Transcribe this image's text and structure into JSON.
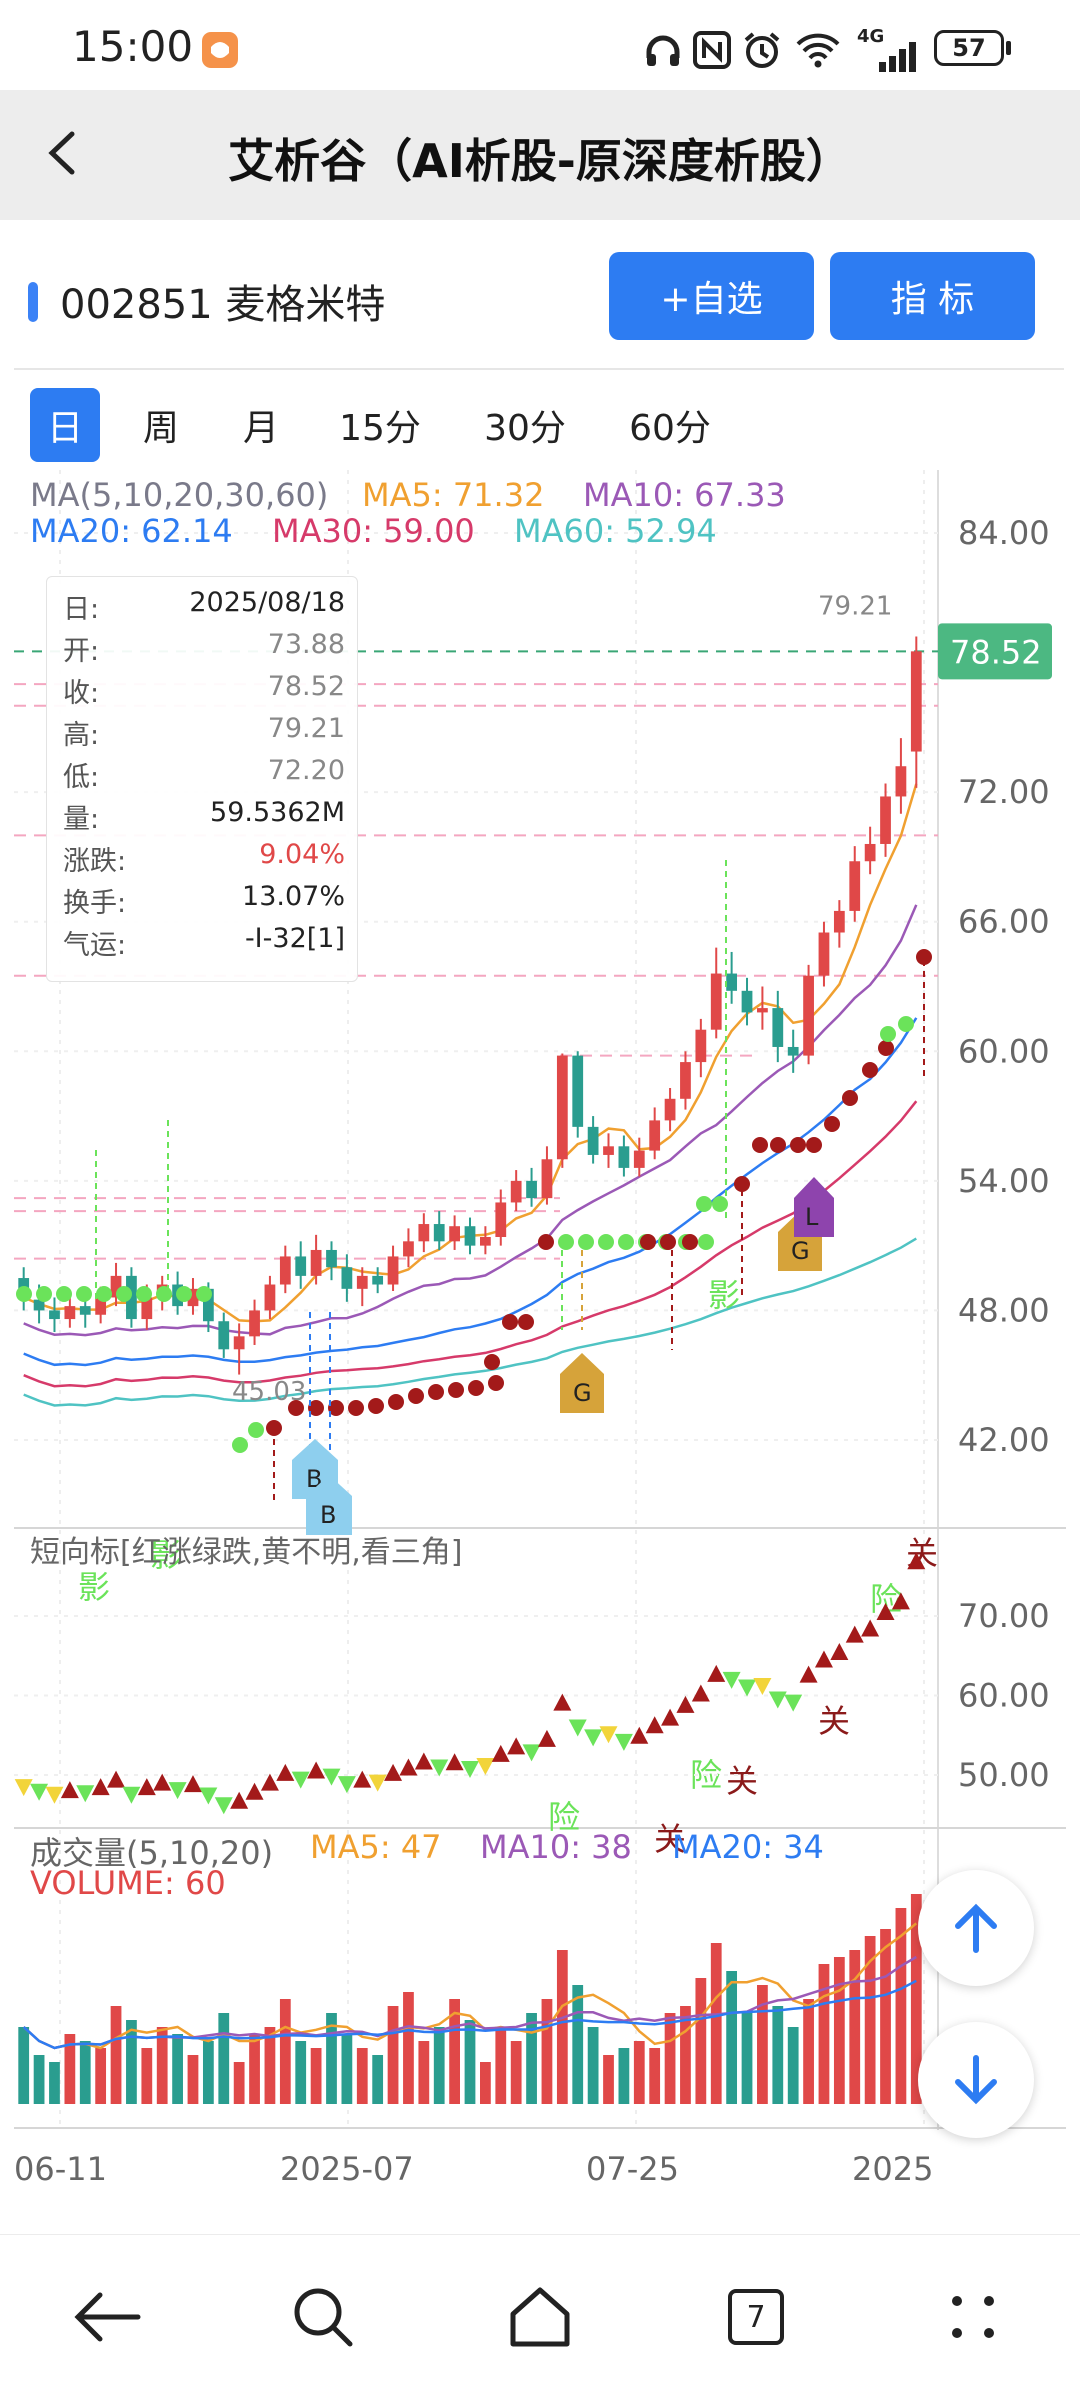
{
  "status_bar": {
    "time": "15:00",
    "battery": "57",
    "network": "4G",
    "icons": [
      "app-notification-icon",
      "headphones-icon",
      "nfc-icon",
      "alarm-icon",
      "wifi-icon",
      "signal-icon",
      "battery-icon"
    ]
  },
  "nav": {
    "title": "艾析谷（AI析股-原深度析股）",
    "back_icon": "chevron-left-icon"
  },
  "stock": {
    "code_name": "002851 麦格米特",
    "accent": "#3b82f6"
  },
  "buttons": {
    "watchlist": "+自选",
    "indicator": "指  标"
  },
  "periods": [
    {
      "label": "日",
      "active": true
    },
    {
      "label": "周",
      "active": false
    },
    {
      "label": "月",
      "active": false
    },
    {
      "label": "15分",
      "active": false
    },
    {
      "label": "30分",
      "active": false
    },
    {
      "label": "60分",
      "active": false
    }
  ],
  "ma_legend": {
    "title": "MA(5,10,20,30,60)",
    "ma5": "MA5: 71.32",
    "ma10": "MA10: 67.33",
    "ma20": "MA20: 62.14",
    "ma30": "MA30: 59.00",
    "ma60": "MA60: 52.94"
  },
  "info": {
    "rows": [
      {
        "k": "日:",
        "v": "2025/08/18"
      },
      {
        "k": "开:",
        "v": "73.88"
      },
      {
        "k": "收:",
        "v": "78.52"
      },
      {
        "k": "高:",
        "v": "79.21"
      },
      {
        "k": "低:",
        "v": "72.20"
      },
      {
        "k": "量:",
        "v": "59.5362M"
      },
      {
        "k": "涨跌:",
        "v": "9.04%"
      },
      {
        "k": "换手:",
        "v": "13.07%"
      },
      {
        "k": "气运:",
        "v": "-I-32[1]"
      }
    ]
  },
  "price_axis": {
    "ticks": [
      "84.00",
      "72.00",
      "66.00",
      "60.00",
      "54.00",
      "48.00",
      "42.00"
    ],
    "last_price": "78.52",
    "high_label": "79.21",
    "low_label": "45.03"
  },
  "signals": {
    "ying": "影",
    "xian": "险",
    "guan": "关",
    "b": "B",
    "g": "G",
    "l": "L"
  },
  "short_indicator": {
    "title": "短向标[红涨绿跌,黄不明,看三角]",
    "ticks": [
      "70.00",
      "60.00",
      "50.00"
    ]
  },
  "volume_legend": {
    "title": "成交量(5,10,20)",
    "ma5": "MA5: 47",
    "ma10": "MA10: 38",
    "ma20": "MA20: 34",
    "volume": "VOLUME: 60"
  },
  "date_axis": [
    "06-11",
    "2025-07",
    "07-25",
    "2025"
  ],
  "bottom_nav": {
    "tab_count": "7",
    "icons": [
      "back-arrow-icon",
      "search-icon",
      "home-icon",
      "tabs-icon",
      "menu-dots-icon"
    ]
  },
  "colors": {
    "up": "#e04848",
    "down": "#2a9d8f",
    "ma5": "#f0a030",
    "ma10": "#9b59b6",
    "ma20": "#2d7cf2",
    "ma30": "#d63a6a",
    "ma60": "#4fc3c3",
    "button": "#2d7cf2"
  },
  "chart_data": {
    "type": "candlestick",
    "price_axis": [
      42,
      84
    ],
    "candles": [
      [
        49.5,
        48.6,
        50.0,
        48.0
      ],
      [
        48.5,
        48.0,
        49.2,
        47.4
      ],
      [
        48.0,
        47.6,
        48.6,
        47.0
      ],
      [
        47.6,
        48.2,
        48.6,
        47.2
      ],
      [
        48.2,
        47.8,
        48.9,
        47.2
      ],
      [
        47.8,
        48.6,
        49.1,
        47.4
      ],
      [
        48.6,
        49.6,
        50.2,
        48.2
      ],
      [
        49.6,
        47.6,
        50.0,
        47.2
      ],
      [
        47.6,
        48.6,
        49.2,
        47.1
      ],
      [
        48.6,
        49.2,
        49.6,
        48.0
      ],
      [
        49.2,
        48.2,
        49.8,
        47.8
      ],
      [
        48.2,
        49.0,
        49.5,
        47.8
      ],
      [
        49.0,
        47.5,
        49.3,
        47.0
      ],
      [
        47.5,
        46.2,
        47.9,
        45.8
      ],
      [
        46.2,
        46.8,
        47.4,
        45.03
      ],
      [
        46.8,
        48.0,
        48.5,
        46.4
      ],
      [
        48.0,
        49.2,
        49.6,
        47.6
      ],
      [
        49.2,
        50.5,
        51.0,
        48.8
      ],
      [
        50.5,
        49.6,
        51.2,
        49.0
      ],
      [
        49.6,
        50.8,
        51.5,
        49.2
      ],
      [
        50.8,
        50.0,
        51.2,
        49.4
      ],
      [
        50.0,
        49.0,
        50.6,
        48.4
      ],
      [
        49.0,
        49.6,
        50.0,
        48.2
      ],
      [
        49.6,
        49.2,
        50.0,
        48.8
      ],
      [
        49.2,
        50.5,
        51.0,
        48.9
      ],
      [
        50.5,
        51.2,
        51.8,
        50.0
      ],
      [
        51.2,
        52.0,
        52.5,
        50.7
      ],
      [
        52.0,
        51.2,
        52.6,
        50.8
      ],
      [
        51.2,
        51.9,
        52.4,
        50.8
      ],
      [
        51.9,
        51.0,
        52.3,
        50.6
      ],
      [
        51.0,
        51.4,
        51.9,
        50.6
      ],
      [
        51.4,
        53.0,
        53.6,
        51.0
      ],
      [
        53.0,
        54.0,
        54.5,
        52.6
      ],
      [
        54.0,
        53.2,
        54.6,
        52.8
      ],
      [
        53.2,
        55.0,
        55.6,
        52.9
      ],
      [
        55.0,
        59.8,
        59.9,
        54.6
      ],
      [
        59.8,
        56.5,
        60.0,
        56.0
      ],
      [
        56.5,
        55.2,
        57.0,
        54.8
      ],
      [
        55.2,
        55.6,
        56.2,
        54.6
      ],
      [
        55.6,
        54.6,
        56.1,
        54.2
      ],
      [
        54.6,
        55.4,
        56.0,
        54.2
      ],
      [
        55.4,
        56.8,
        57.4,
        55.0
      ],
      [
        56.8,
        57.8,
        58.3,
        56.3
      ],
      [
        57.8,
        59.5,
        60.0,
        57.3
      ],
      [
        59.5,
        61.0,
        61.5,
        58.8
      ],
      [
        61.0,
        63.6,
        64.8,
        60.6
      ],
      [
        63.6,
        62.8,
        64.6,
        62.2
      ],
      [
        62.8,
        61.8,
        63.4,
        61.2
      ],
      [
        61.8,
        62.0,
        63.0,
        61.0
      ],
      [
        62.0,
        60.2,
        62.8,
        59.5
      ],
      [
        60.2,
        59.8,
        61.0,
        59.0
      ],
      [
        59.8,
        63.5,
        64.0,
        59.4
      ],
      [
        63.5,
        65.5,
        66.0,
        63.0
      ],
      [
        65.5,
        66.5,
        67.0,
        64.8
      ],
      [
        66.5,
        68.8,
        69.5,
        66.0
      ],
      [
        68.8,
        69.6,
        70.4,
        68.2
      ],
      [
        69.6,
        71.8,
        72.4,
        69.0
      ],
      [
        71.8,
        73.2,
        74.5,
        71.0
      ],
      [
        73.88,
        78.52,
        79.21,
        72.2
      ]
    ],
    "volume_ma": {
      "ma5": 47,
      "ma10": 38,
      "ma20": 34
    },
    "last_volume": 60,
    "short_indicator_range": [
      46,
      76
    ]
  }
}
